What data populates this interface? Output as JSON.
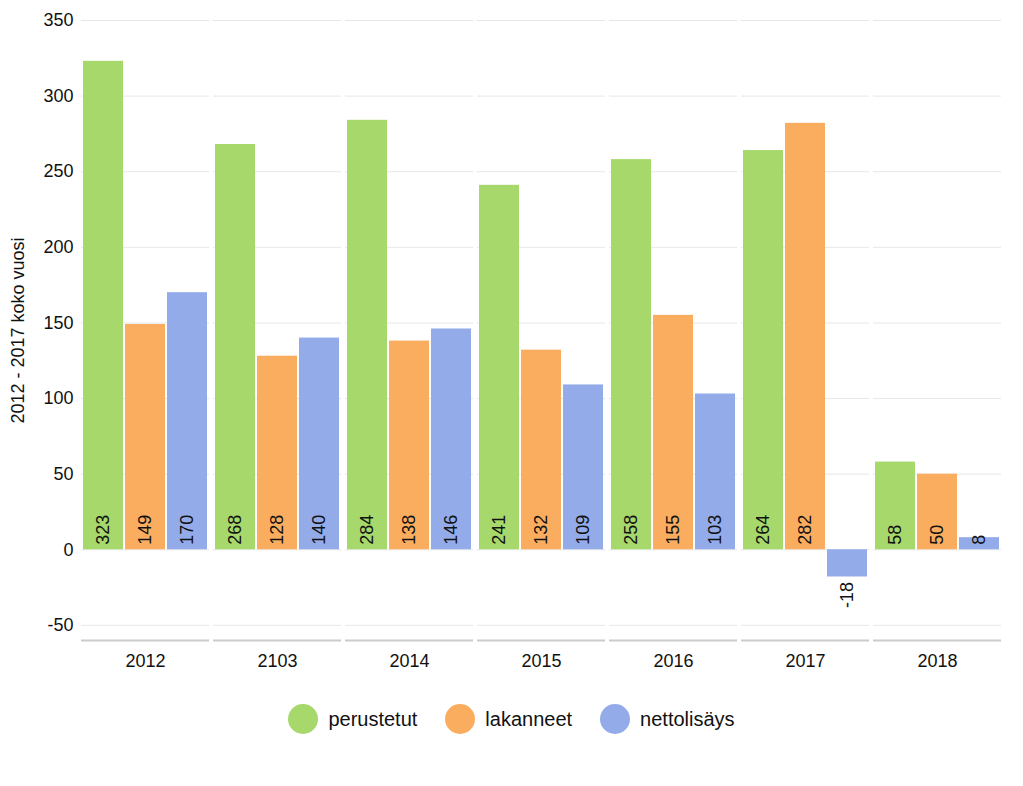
{
  "chart_data": {
    "type": "bar",
    "y_label": "2012 - 2017 koko vuosi",
    "categories": [
      "2012",
      "2103",
      "2014",
      "2015",
      "2016",
      "2017",
      "2018"
    ],
    "series": [
      {
        "name": "perustetut",
        "color": "#a6d86b",
        "values": [
          323,
          268,
          284,
          241,
          258,
          264,
          58
        ]
      },
      {
        "name": "lakanneet",
        "color": "#fbad5f",
        "values": [
          149,
          128,
          138,
          132,
          155,
          282,
          50
        ]
      },
      {
        "name": "nettolisäys",
        "color": "#93abe9",
        "values": [
          170,
          140,
          146,
          109,
          103,
          -18,
          8
        ]
      }
    ],
    "ylim": [
      -60,
      350
    ],
    "yticks": [
      -50,
      0,
      50,
      100,
      150,
      200,
      250,
      300,
      350
    ],
    "grid": true,
    "data_labels": true,
    "legend": "bottom"
  }
}
